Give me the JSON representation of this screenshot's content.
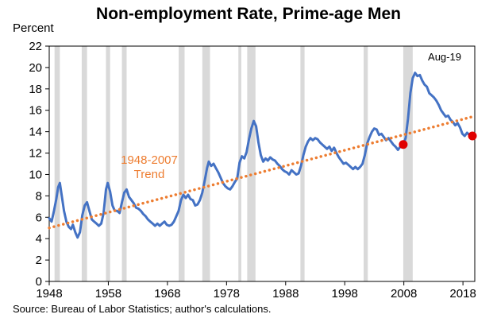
{
  "chart_data": {
    "type": "line",
    "title": "Non-employment Rate, Prime-age Men",
    "ylabel": "Percent",
    "xlabel": "",
    "source": "Source: Bureau of Labor Statistics; author's calculations.",
    "corner_label": "Aug-19",
    "xlim": [
      1948,
      2020
    ],
    "ylim": [
      0,
      22
    ],
    "x_ticks": [
      1948,
      1958,
      1968,
      1978,
      1988,
      1998,
      2008,
      2018
    ],
    "y_ticks": [
      0,
      2,
      4,
      6,
      8,
      10,
      12,
      14,
      16,
      18,
      20,
      22
    ],
    "grid": false,
    "recessions": [
      [
        1948.9,
        1949.8
      ],
      [
        1953.5,
        1954.4
      ],
      [
        1957.6,
        1958.3
      ],
      [
        1960.3,
        1961.1
      ],
      [
        1969.9,
        1970.9
      ],
      [
        1973.9,
        1975.2
      ],
      [
        1980.0,
        1980.5
      ],
      [
        1981.5,
        1982.9
      ],
      [
        1990.5,
        1991.2
      ],
      [
        2001.2,
        2001.9
      ],
      [
        2007.9,
        2009.5
      ]
    ],
    "series": [
      {
        "color": "#4472C4",
        "points": [
          [
            1948.0,
            5.9
          ],
          [
            1948.4,
            5.6
          ],
          [
            1948.8,
            6.6
          ],
          [
            1949.2,
            7.7
          ],
          [
            1949.5,
            8.8
          ],
          [
            1949.8,
            9.2
          ],
          [
            1950.1,
            8.1
          ],
          [
            1950.5,
            6.6
          ],
          [
            1950.9,
            5.6
          ],
          [
            1951.3,
            5.1
          ],
          [
            1951.7,
            4.9
          ],
          [
            1952.0,
            5.3
          ],
          [
            1952.4,
            4.6
          ],
          [
            1952.8,
            4.1
          ],
          [
            1953.2,
            4.6
          ],
          [
            1953.6,
            6.2
          ],
          [
            1954.0,
            7.1
          ],
          [
            1954.4,
            7.4
          ],
          [
            1954.8,
            6.6
          ],
          [
            1955.2,
            5.8
          ],
          [
            1955.6,
            5.6
          ],
          [
            1956.0,
            5.4
          ],
          [
            1956.4,
            5.2
          ],
          [
            1956.8,
            5.4
          ],
          [
            1957.2,
            6.4
          ],
          [
            1957.6,
            8.6
          ],
          [
            1957.9,
            9.2
          ],
          [
            1958.3,
            8.4
          ],
          [
            1958.7,
            7.1
          ],
          [
            1959.1,
            6.6
          ],
          [
            1959.5,
            6.6
          ],
          [
            1959.9,
            6.4
          ],
          [
            1960.3,
            7.4
          ],
          [
            1960.7,
            8.3
          ],
          [
            1961.1,
            8.6
          ],
          [
            1961.5,
            7.9
          ],
          [
            1961.9,
            7.6
          ],
          [
            1962.3,
            7.3
          ],
          [
            1962.7,
            6.9
          ],
          [
            1963.1,
            6.8
          ],
          [
            1963.5,
            6.6
          ],
          [
            1963.9,
            6.3
          ],
          [
            1964.3,
            6.1
          ],
          [
            1964.7,
            5.8
          ],
          [
            1965.1,
            5.6
          ],
          [
            1965.5,
            5.4
          ],
          [
            1965.9,
            5.2
          ],
          [
            1966.3,
            5.4
          ],
          [
            1966.7,
            5.2
          ],
          [
            1967.1,
            5.4
          ],
          [
            1967.5,
            5.6
          ],
          [
            1967.9,
            5.3
          ],
          [
            1968.3,
            5.2
          ],
          [
            1968.7,
            5.3
          ],
          [
            1969.1,
            5.6
          ],
          [
            1969.5,
            6.1
          ],
          [
            1969.9,
            6.6
          ],
          [
            1970.3,
            7.6
          ],
          [
            1970.7,
            8.1
          ],
          [
            1971.1,
            7.8
          ],
          [
            1971.5,
            8.1
          ],
          [
            1971.9,
            7.7
          ],
          [
            1972.3,
            7.6
          ],
          [
            1972.7,
            7.1
          ],
          [
            1973.1,
            7.2
          ],
          [
            1973.5,
            7.6
          ],
          [
            1973.9,
            8.3
          ],
          [
            1974.3,
            9.4
          ],
          [
            1974.7,
            10.6
          ],
          [
            1975.0,
            11.2
          ],
          [
            1975.4,
            10.8
          ],
          [
            1975.8,
            11.0
          ],
          [
            1976.2,
            10.6
          ],
          [
            1976.6,
            10.2
          ],
          [
            1977.0,
            9.7
          ],
          [
            1977.4,
            9.2
          ],
          [
            1977.8,
            8.9
          ],
          [
            1978.2,
            8.7
          ],
          [
            1978.6,
            8.6
          ],
          [
            1979.0,
            8.9
          ],
          [
            1979.4,
            9.3
          ],
          [
            1979.8,
            9.6
          ],
          [
            1980.2,
            11.1
          ],
          [
            1980.6,
            11.7
          ],
          [
            1981.0,
            11.5
          ],
          [
            1981.4,
            12.1
          ],
          [
            1981.8,
            13.3
          ],
          [
            1982.2,
            14.3
          ],
          [
            1982.6,
            15.0
          ],
          [
            1983.0,
            14.5
          ],
          [
            1983.4,
            13.0
          ],
          [
            1983.8,
            11.8
          ],
          [
            1984.2,
            11.2
          ],
          [
            1984.6,
            11.5
          ],
          [
            1985.0,
            11.3
          ],
          [
            1985.4,
            11.6
          ],
          [
            1985.8,
            11.4
          ],
          [
            1986.2,
            11.3
          ],
          [
            1986.6,
            11.0
          ],
          [
            1987.0,
            10.8
          ],
          [
            1987.4,
            10.5
          ],
          [
            1987.8,
            10.3
          ],
          [
            1988.2,
            10.2
          ],
          [
            1988.6,
            10.0
          ],
          [
            1989.0,
            10.4
          ],
          [
            1989.4,
            10.2
          ],
          [
            1989.8,
            10.0
          ],
          [
            1990.2,
            10.1
          ],
          [
            1990.6,
            10.8
          ],
          [
            1991.0,
            11.8
          ],
          [
            1991.4,
            12.6
          ],
          [
            1991.8,
            13.1
          ],
          [
            1992.2,
            13.4
          ],
          [
            1992.6,
            13.2
          ],
          [
            1993.0,
            13.4
          ],
          [
            1993.4,
            13.3
          ],
          [
            1993.8,
            13.0
          ],
          [
            1994.2,
            12.8
          ],
          [
            1994.6,
            12.6
          ],
          [
            1995.0,
            12.4
          ],
          [
            1995.4,
            12.6
          ],
          [
            1995.8,
            12.2
          ],
          [
            1996.2,
            12.5
          ],
          [
            1996.6,
            12.0
          ],
          [
            1997.0,
            11.6
          ],
          [
            1997.4,
            11.3
          ],
          [
            1997.8,
            11.0
          ],
          [
            1998.2,
            11.1
          ],
          [
            1998.6,
            10.9
          ],
          [
            1999.0,
            10.7
          ],
          [
            1999.4,
            10.5
          ],
          [
            1999.8,
            10.7
          ],
          [
            2000.2,
            10.5
          ],
          [
            2000.6,
            10.7
          ],
          [
            2001.0,
            11.0
          ],
          [
            2001.4,
            11.8
          ],
          [
            2001.8,
            12.9
          ],
          [
            2002.2,
            13.5
          ],
          [
            2002.6,
            14.0
          ],
          [
            2003.0,
            14.3
          ],
          [
            2003.4,
            14.2
          ],
          [
            2003.8,
            13.7
          ],
          [
            2004.2,
            13.8
          ],
          [
            2004.6,
            13.5
          ],
          [
            2005.0,
            13.2
          ],
          [
            2005.4,
            13.4
          ],
          [
            2005.8,
            13.1
          ],
          [
            2006.2,
            12.8
          ],
          [
            2006.6,
            12.6
          ],
          [
            2007.0,
            12.3
          ],
          [
            2007.4,
            12.6
          ],
          [
            2007.9,
            12.8
          ],
          [
            2008.3,
            13.4
          ],
          [
            2008.7,
            15.2
          ],
          [
            2009.1,
            17.6
          ],
          [
            2009.5,
            19.0
          ],
          [
            2009.9,
            19.5
          ],
          [
            2010.3,
            19.2
          ],
          [
            2010.7,
            19.3
          ],
          [
            2011.1,
            18.8
          ],
          [
            2011.5,
            18.4
          ],
          [
            2011.9,
            18.2
          ],
          [
            2012.3,
            17.6
          ],
          [
            2012.7,
            17.4
          ],
          [
            2013.1,
            17.2
          ],
          [
            2013.5,
            16.9
          ],
          [
            2013.9,
            16.5
          ],
          [
            2014.3,
            16.0
          ],
          [
            2014.7,
            15.7
          ],
          [
            2015.1,
            15.4
          ],
          [
            2015.5,
            15.5
          ],
          [
            2015.9,
            15.1
          ],
          [
            2016.3,
            14.9
          ],
          [
            2016.7,
            14.6
          ],
          [
            2017.1,
            14.8
          ],
          [
            2017.5,
            14.4
          ],
          [
            2017.9,
            13.8
          ],
          [
            2018.3,
            13.6
          ],
          [
            2018.7,
            13.9
          ],
          [
            2019.1,
            13.7
          ],
          [
            2019.6,
            13.6
          ]
        ]
      },
      {
        "color": "#ED7D31",
        "style": "dotted",
        "label": "1948-2007\nTrend",
        "points": [
          [
            1948,
            5.0
          ],
          [
            2019.6,
            15.4
          ]
        ]
      }
    ],
    "markers": [
      {
        "x": 2007.9,
        "y": 12.8,
        "color": "#E00000"
      },
      {
        "x": 2019.6,
        "y": 13.6,
        "color": "#E00000"
      }
    ]
  }
}
